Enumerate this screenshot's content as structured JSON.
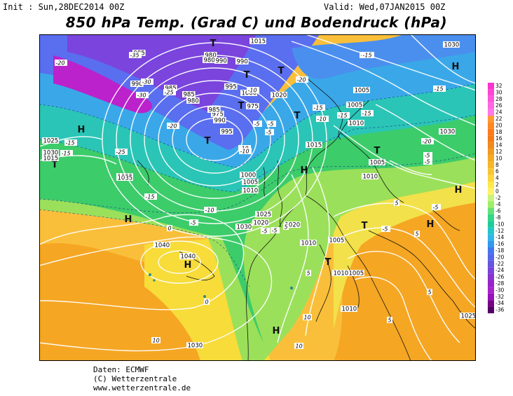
{
  "header": {
    "init": "Init : Sun,28DEC2014 00Z",
    "valid": "Valid: Wed,07JAN2015 00Z",
    "title": "850 hPa Temp. (Grad C) und Bodendruck (hPa)"
  },
  "credits": {
    "line1": "Daten: ECMWF",
    "line2": "(C) Wetterzentrale",
    "line3": "www.wetterzentrale.de"
  },
  "legend": {
    "values": [
      "32",
      "30",
      "28",
      "26",
      "24",
      "22",
      "20",
      "18",
      "16",
      "14",
      "12",
      "10",
      "8",
      "6",
      "4",
      "2",
      "0",
      "-2",
      "-4",
      "-6",
      "-8",
      "-10",
      "-12",
      "-14",
      "-16",
      "-18",
      "-20",
      "-22",
      "-24",
      "-26",
      "-28",
      "-30",
      "-32",
      "-34",
      "-36"
    ],
    "colors": [
      "#ff33cc",
      "#ff44d4",
      "#ff55dd",
      "#ff66e2",
      "#ff77e8",
      "#ff9933",
      "#ff8822",
      "#ff7a1a",
      "#f77a14",
      "#f08a1e",
      "#f29b22",
      "#f5aa22",
      "#f7b72a",
      "#fac532",
      "#fcd63c",
      "#ffe84a",
      "#fff266",
      "#c8f27a",
      "#9eee66",
      "#66e07a",
      "#33d68a",
      "#1ecc99",
      "#22c7cc",
      "#33b5e6",
      "#3399ee",
      "#4477ee",
      "#5566ee",
      "#6655dd",
      "#7744dd",
      "#8833cc",
      "#9922cc",
      "#aa22cc",
      "#9911bb",
      "#770088",
      "#550066"
    ]
  },
  "map": {
    "symbols": [
      {
        "text": "H",
        "kind": "high"
      },
      {
        "text": "H",
        "kind": "high"
      },
      {
        "text": "H",
        "kind": "high"
      },
      {
        "text": "H",
        "kind": "high"
      },
      {
        "text": "H",
        "kind": "high"
      },
      {
        "text": "H",
        "kind": "high"
      },
      {
        "text": "H",
        "kind": "high"
      },
      {
        "text": "H",
        "kind": "high"
      },
      {
        "text": "T",
        "kind": "low"
      },
      {
        "text": "T",
        "kind": "low"
      },
      {
        "text": "T",
        "kind": "low"
      },
      {
        "text": "T",
        "kind": "low"
      },
      {
        "text": "T",
        "kind": "low"
      },
      {
        "text": "T",
        "kind": "low"
      },
      {
        "text": "T",
        "kind": "low"
      },
      {
        "text": "T",
        "kind": "low"
      },
      {
        "text": "T",
        "kind": "low"
      },
      {
        "text": "T",
        "kind": "low"
      }
    ],
    "pressure_labels": [
      "985",
      "980",
      "980",
      "990",
      "990",
      "985",
      "990",
      "995",
      "985",
      "980",
      "975",
      "1000",
      "975",
      "985",
      "990",
      "995",
      "1000",
      "1005",
      "1010",
      "1020",
      "1025",
      "1030",
      "1035",
      "1040",
      "1030",
      "1025",
      "1015",
      "1020",
      "1015",
      "1005",
      "1005",
      "1010",
      "1015",
      "1005",
      "1010",
      "1030",
      "1030",
      "1040",
      "1035",
      "1030",
      "1010",
      "1005",
      "1010",
      "1025",
      "1010",
      "1005",
      "1020"
    ],
    "temp_labels": [
      "-20",
      "-35",
      "-30",
      "-30",
      "-25",
      "-20",
      "-15",
      "-25",
      "-15",
      "-10",
      "-15",
      "-10",
      "-5",
      "-10",
      "-5",
      "-5",
      "-15",
      "-20",
      "-15",
      "-10",
      "-15",
      "-5",
      "-20",
      "-15",
      "-10",
      "-5",
      "-15",
      "-15",
      "-5",
      "0",
      "-5",
      "-5",
      "5",
      "-5",
      "-5",
      "5",
      "0",
      "5",
      "5",
      "10",
      "10",
      "10",
      "5",
      "5"
    ]
  }
}
